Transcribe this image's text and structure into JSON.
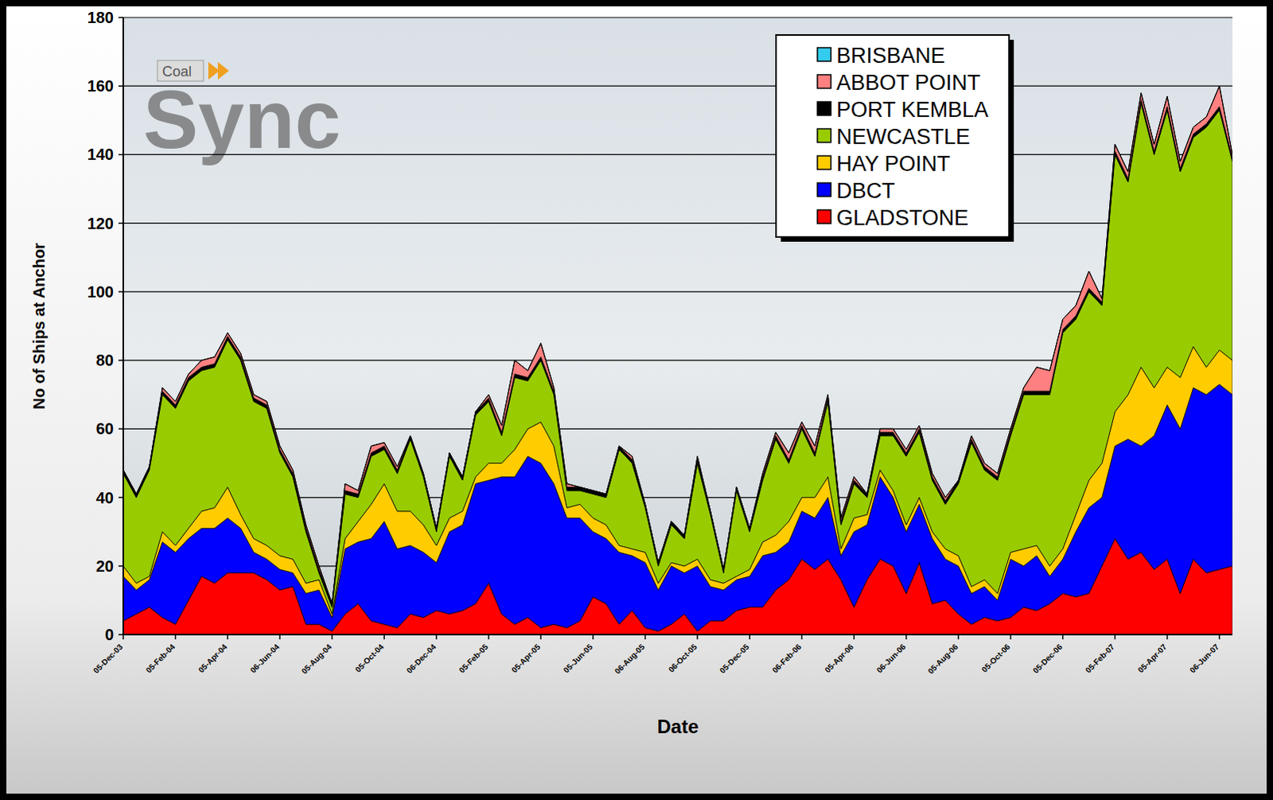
{
  "chart_data": {
    "type": "area",
    "stacked": true,
    "x_label": "Date",
    "y_label": "No of Ships at Anchor",
    "annotations": [
      "Coal",
      "Sync"
    ],
    "categories": [
      "05-Dec-03",
      null,
      null,
      null,
      "05-Feb-04",
      null,
      null,
      null,
      "05-Apr-04",
      null,
      null,
      null,
      "06-Jun-04",
      null,
      null,
      null,
      "05-Aug-04",
      null,
      null,
      null,
      "05-Oct-04",
      null,
      null,
      null,
      "06-Dec-04",
      null,
      null,
      null,
      "05-Feb-05",
      null,
      null,
      null,
      "05-Apr-05",
      null,
      null,
      null,
      "05-Jun-05",
      null,
      null,
      null,
      "06-Aug-05",
      null,
      null,
      null,
      "06-Oct-05",
      null,
      null,
      null,
      "05-Dec-05",
      null,
      null,
      null,
      "06-Feb-06",
      null,
      null,
      null,
      "05-Apr-06",
      null,
      null,
      null,
      "06-Jun-06",
      null,
      null,
      null,
      "05-Aug-06",
      null,
      null,
      null,
      "05-Oct-06",
      null,
      null,
      null,
      "05-Dec-06",
      null,
      null,
      null,
      "05-Feb-07",
      null,
      null,
      null,
      "05-Apr-07",
      null,
      null,
      null,
      "06-Jun-07",
      null
    ],
    "series": [
      {
        "name": "GLADSTONE",
        "color": "#ff0000",
        "values": [
          4,
          6,
          8,
          5,
          3,
          10,
          17,
          15,
          18,
          18,
          18,
          16,
          13,
          14,
          3,
          3,
          1,
          6,
          9,
          4,
          3,
          2,
          6,
          5,
          7,
          6,
          7,
          9,
          15,
          6,
          3,
          5,
          2,
          3,
          2,
          4,
          11,
          9,
          3,
          7,
          2,
          1,
          3,
          6,
          1,
          4,
          4,
          7,
          8,
          8,
          13,
          16,
          22,
          19,
          22,
          16,
          8,
          16,
          22,
          20,
          12,
          21,
          9,
          10,
          6,
          3,
          5,
          4,
          5,
          8,
          7,
          9,
          12,
          11,
          12,
          20,
          28,
          22,
          24,
          19,
          22,
          12,
          22,
          18,
          19,
          20
        ]
      },
      {
        "name": "DBCT",
        "color": "#0000ff",
        "values": [
          13,
          7,
          8,
          22,
          21,
          18,
          14,
          16,
          16,
          13,
          6,
          6,
          6,
          4,
          9,
          10,
          4,
          19,
          18,
          24,
          30,
          23,
          20,
          19,
          14,
          24,
          25,
          35,
          30,
          40,
          43,
          47,
          48,
          41,
          32,
          30,
          19,
          19,
          21,
          16,
          19,
          12,
          17,
          12,
          19,
          10,
          9,
          9,
          9,
          15,
          11,
          11,
          14,
          15,
          18,
          7,
          22,
          16,
          24,
          20,
          18,
          17,
          19,
          12,
          14,
          9,
          9,
          6,
          17,
          12,
          16,
          8,
          10,
          19,
          25,
          20,
          27,
          35,
          31,
          39,
          45,
          48,
          50,
          52,
          54,
          50
        ]
      },
      {
        "name": "HAY POINT",
        "color": "#ffcc00",
        "values": [
          3,
          2,
          1,
          3,
          2,
          3,
          5,
          6,
          9,
          4,
          4,
          4,
          4,
          4,
          3,
          3,
          1,
          3,
          6,
          10,
          11,
          11,
          10,
          8,
          5,
          4,
          4,
          2,
          5,
          4,
          8,
          8,
          12,
          11,
          3,
          4,
          4,
          4,
          2,
          2,
          3,
          2,
          1,
          2,
          2,
          2,
          2,
          1,
          2,
          4,
          5,
          6,
          4,
          6,
          6,
          2,
          4,
          3,
          2,
          2,
          2,
          2,
          2,
          3,
          3,
          2,
          2,
          2,
          2,
          5,
          3,
          3,
          3,
          5,
          8,
          10,
          10,
          13,
          23,
          14,
          11,
          15,
          12,
          8,
          10,
          10
        ]
      },
      {
        "name": "NEWCASTLE",
        "color": "#99cc00",
        "values": [
          27,
          25,
          31,
          40,
          40,
          43,
          41,
          41,
          43,
          45,
          40,
          40,
          30,
          24,
          15,
          2,
          2,
          13,
          7,
          14,
          10,
          11,
          21,
          14,
          4,
          18,
          9,
          18,
          18,
          8,
          21,
          14,
          18,
          15,
          5,
          4,
          7,
          8,
          28,
          25,
          13,
          5,
          11,
          8,
          28,
          19,
          3,
          25,
          11,
          18,
          28,
          17,
          20,
          12,
          22,
          7,
          10,
          5,
          10,
          16,
          20,
          19,
          15,
          13,
          21,
          42,
          32,
          33,
          34,
          45,
          44,
          50,
          63,
          57,
          55,
          46,
          75,
          62,
          77,
          68,
          75,
          60,
          61,
          70,
          70,
          58
        ]
      },
      {
        "name": "PORT KEMBLA",
        "color": "#000000",
        "values": [
          1,
          1,
          1,
          1,
          1,
          1,
          1,
          1,
          1,
          1,
          1,
          1,
          1,
          1,
          1,
          1,
          1,
          1,
          1,
          1,
          1,
          1,
          1,
          1,
          1,
          1,
          1,
          1,
          1,
          1,
          1,
          1,
          1,
          1,
          1,
          1,
          1,
          1,
          1,
          1,
          1,
          1,
          1,
          1,
          1,
          1,
          1,
          1,
          1,
          1,
          1,
          1,
          1,
          1,
          1,
          1,
          1,
          1,
          1,
          1,
          1,
          1,
          1,
          1,
          1,
          1,
          1,
          1,
          1,
          1,
          1,
          1,
          1,
          1,
          1,
          1,
          1,
          1,
          1,
          1,
          1,
          1,
          1,
          1,
          1,
          1
        ]
      },
      {
        "name": "ABBOT POINT",
        "color": "#ff8080",
        "values": [
          0,
          0,
          0,
          1,
          1,
          1,
          2,
          2,
          1,
          1,
          1,
          1,
          1,
          1,
          1,
          1,
          0,
          2,
          1,
          2,
          1,
          1,
          0,
          0,
          0,
          0,
          0,
          0,
          1,
          2,
          4,
          2,
          4,
          1,
          1,
          0,
          0,
          0,
          0,
          1,
          0,
          0,
          0,
          0,
          1,
          0,
          0,
          0,
          0,
          1,
          1,
          2,
          1,
          2,
          1,
          1,
          1,
          0,
          1,
          1,
          1,
          1,
          1,
          1,
          0,
          1,
          1,
          1,
          1,
          1,
          7,
          6,
          3,
          3,
          5,
          1,
          2,
          2,
          2,
          2,
          3,
          2,
          2,
          2,
          6,
          1
        ]
      },
      {
        "name": "BRISBANE",
        "color": "#33ccee",
        "values": [
          0,
          0,
          0,
          0,
          0,
          0,
          0,
          0,
          0,
          0,
          0,
          0,
          0,
          0,
          0,
          0,
          0,
          0,
          0,
          0,
          0,
          0,
          0,
          0,
          0,
          0,
          0,
          0,
          0,
          0,
          0,
          0,
          0,
          0,
          0,
          0,
          0,
          0,
          0,
          0,
          0,
          0,
          0,
          0,
          0,
          0,
          0,
          0,
          0,
          0,
          0,
          0,
          0,
          0,
          0,
          0,
          0,
          0,
          0,
          0,
          0,
          0,
          0,
          0,
          0,
          0,
          0,
          0,
          0,
          0,
          0,
          0,
          0,
          0,
          0,
          0,
          0,
          0,
          0,
          0,
          0,
          0,
          0,
          0,
          0,
          0
        ]
      }
    ],
    "ylim": [
      0,
      180
    ],
    "yticks": [
      0,
      20,
      40,
      60,
      80,
      100,
      120,
      140,
      160,
      180
    ],
    "grid": true,
    "legend": "top-right"
  }
}
